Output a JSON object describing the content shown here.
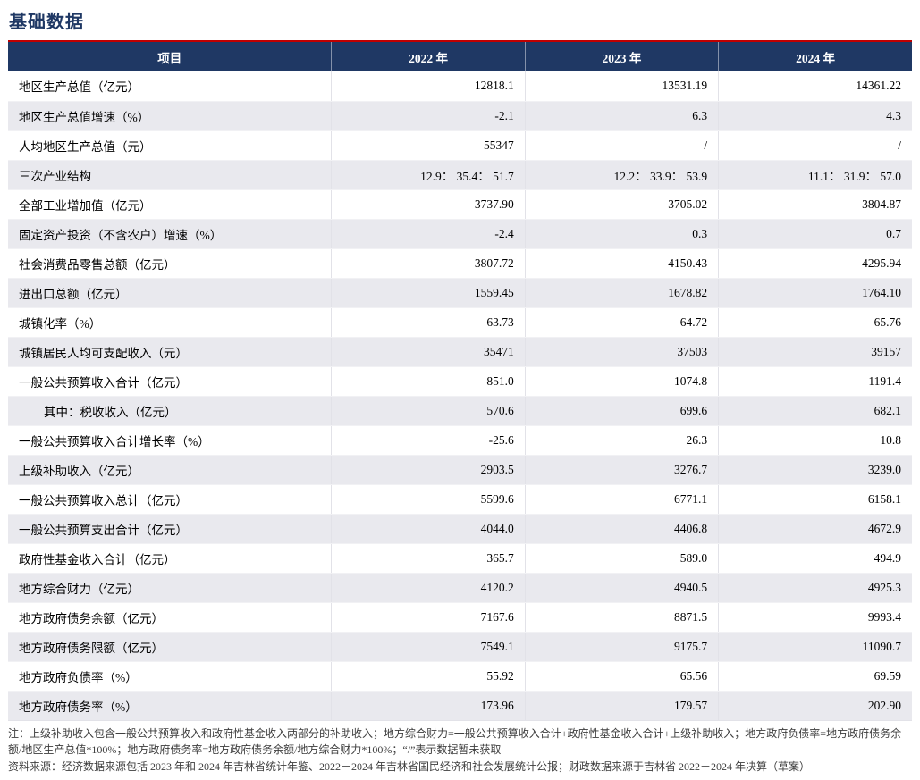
{
  "page": {
    "title": "基础数据"
  },
  "table": {
    "headers": [
      "项目",
      "2022 年",
      "2023 年",
      "2024 年"
    ],
    "rows": [
      {
        "label": "地区生产总值（亿元）",
        "values": [
          "12818.1",
          "13531.19",
          "14361.22"
        ],
        "indent": false
      },
      {
        "label": "地区生产总值增速（%）",
        "values": [
          "-2.1",
          "6.3",
          "4.3"
        ],
        "indent": false
      },
      {
        "label": "人均地区生产总值（元）",
        "values": [
          "55347",
          "/",
          "/"
        ],
        "indent": false
      },
      {
        "label": "三次产业结构",
        "values": [
          "12.9： 35.4： 51.7",
          "12.2： 33.9： 53.9",
          "11.1： 31.9： 57.0"
        ],
        "indent": false
      },
      {
        "label": "全部工业增加值（亿元）",
        "values": [
          "3737.90",
          "3705.02",
          "3804.87"
        ],
        "indent": false
      },
      {
        "label": "固定资产投资（不含农户）增速（%）",
        "values": [
          "-2.4",
          "0.3",
          "0.7"
        ],
        "indent": false
      },
      {
        "label": "社会消费品零售总额（亿元）",
        "values": [
          "3807.72",
          "4150.43",
          "4295.94"
        ],
        "indent": false
      },
      {
        "label": "进出口总额（亿元）",
        "values": [
          "1559.45",
          "1678.82",
          "1764.10"
        ],
        "indent": false
      },
      {
        "label": "城镇化率（%）",
        "values": [
          "63.73",
          "64.72",
          "65.76"
        ],
        "indent": false
      },
      {
        "label": "城镇居民人均可支配收入（元）",
        "values": [
          "35471",
          "37503",
          "39157"
        ],
        "indent": false
      },
      {
        "label": "一般公共预算收入合计（亿元）",
        "values": [
          "851.0",
          "1074.8",
          "1191.4"
        ],
        "indent": false
      },
      {
        "label": "其中：税收收入（亿元）",
        "values": [
          "570.6",
          "699.6",
          "682.1"
        ],
        "indent": true
      },
      {
        "label": "一般公共预算收入合计增长率（%）",
        "values": [
          "-25.6",
          "26.3",
          "10.8"
        ],
        "indent": false
      },
      {
        "label": "上级补助收入（亿元）",
        "values": [
          "2903.5",
          "3276.7",
          "3239.0"
        ],
        "indent": false
      },
      {
        "label": "一般公共预算收入总计（亿元）",
        "values": [
          "5599.6",
          "6771.1",
          "6158.1"
        ],
        "indent": false
      },
      {
        "label": "一般公共预算支出合计（亿元）",
        "values": [
          "4044.0",
          "4406.8",
          "4672.9"
        ],
        "indent": false
      },
      {
        "label": "政府性基金收入合计（亿元）",
        "values": [
          "365.7",
          "589.0",
          "494.9"
        ],
        "indent": false
      },
      {
        "label": "地方综合财力（亿元）",
        "values": [
          "4120.2",
          "4940.5",
          "4925.3"
        ],
        "indent": false
      },
      {
        "label": "地方政府债务余额（亿元）",
        "values": [
          "7167.6",
          "8871.5",
          "9993.4"
        ],
        "indent": false
      },
      {
        "label": "地方政府债务限额（亿元）",
        "values": [
          "7549.1",
          "9175.7",
          "11090.7"
        ],
        "indent": false
      },
      {
        "label": "地方政府负债率（%）",
        "values": [
          "55.92",
          "65.56",
          "69.59"
        ],
        "indent": false
      },
      {
        "label": "地方政府债务率（%）",
        "values": [
          "173.96",
          "179.57",
          "202.90"
        ],
        "indent": false
      }
    ]
  },
  "notes": {
    "note1": "注：上级补助收入包含一般公共预算收入和政府性基金收入两部分的补助收入；地方综合财力=一般公共预算收入合计+政府性基金收入合计+上级补助收入；地方政府负债率=地方政府债务余额/地区生产总值*100%；地方政府债务率=地方政府债务余额/地方综合财力*100%；“/”表示数据暂未获取",
    "note2": "资料来源：经济数据来源包括 2023 年和 2024 年吉林省统计年鉴、2022－2024 年吉林省国民经济和社会发展统计公报；财政数据来源于吉林省 2022－2024 年决算（草案）"
  },
  "colors": {
    "title": "#1F3864",
    "header_bg": "#1F3864",
    "divider_red": "#C00000",
    "alt_row_bg": "#E9E9EE"
  }
}
